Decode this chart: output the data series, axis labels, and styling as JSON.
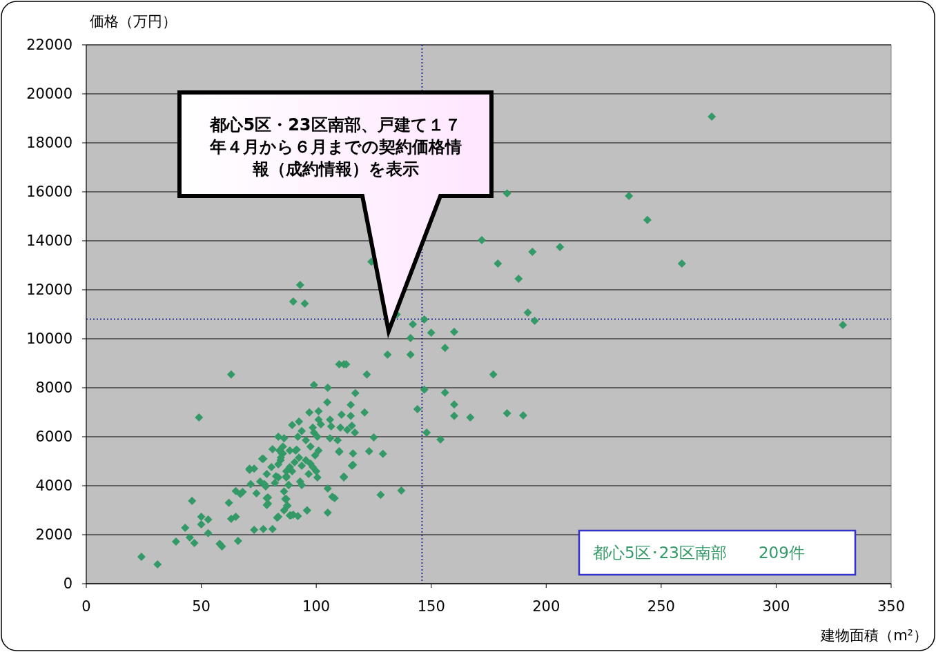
{
  "chart_data": {
    "type": "scatter",
    "xlabel": "建物面積（m²）",
    "ylabel": "価格（万円）",
    "annotations": [
      "都心5区・23区南部、戸建て１７年４月から６月までの契約価格情報（成約情報）を表示"
    ],
    "xlim": [
      0,
      350
    ],
    "xticks": [
      0,
      50,
      100,
      150,
      200,
      250,
      300,
      350
    ],
    "ylim": [
      0,
      22000
    ],
    "yticks": [
      0,
      2000,
      4000,
      6000,
      8000,
      10000,
      12000,
      14000,
      16000,
      18000,
      20000,
      22000
    ],
    "grid": "y",
    "marker": "diamond",
    "legend": "bottom right",
    "ref_lines": [
      {
        "axis": "x",
        "value": 146,
        "color": "#000080",
        "line_style": "dotted"
      },
      {
        "axis": "y",
        "value": 10800,
        "color": "#000080",
        "line_style": "dotted"
      }
    ],
    "series": [
      {
        "name": "都心5区･23区南部　　209件",
        "color": "#339966",
        "x": [
          24,
          31,
          39,
          43,
          46,
          45,
          47,
          50,
          50,
          53,
          53,
          58,
          59,
          49,
          63,
          62,
          63,
          65,
          66,
          65,
          67,
          68,
          71,
          73,
          73,
          77,
          81,
          79,
          79,
          78,
          83,
          82,
          77,
          85,
          86,
          87,
          90,
          92,
          96,
          99,
          93,
          90,
          95,
          105,
          105,
          105,
          107,
          108,
          112,
          110,
          116,
          116,
          110,
          112,
          113,
          117,
          121,
          122,
          125,
          123,
          129,
          128,
          137,
          124,
          131,
          135,
          141,
          141,
          142,
          147,
          150,
          156,
          160,
          144,
          147,
          148,
          154,
          156,
          160,
          160,
          167,
          177,
          183,
          190,
          172,
          179,
          183,
          188,
          194,
          206,
          192,
          195,
          236,
          244,
          259,
          272,
          329,
          89.5,
          83.5,
          86,
          81,
          76.5,
          71,
          85.5,
          85.5,
          84.5,
          80.5,
          78.5,
          82.5,
          71.5,
          74,
          87,
          88,
          86,
          86.5,
          87.5,
          88.5,
          78.5,
          78.5,
          75.6,
          77.5,
          90.6,
          91,
          104.8,
          115,
          97,
          101,
          111,
          115,
          92.5,
          101,
          106,
          102,
          98.5,
          106.5,
          110.5,
          113.5,
          115.5,
          116.8,
          93.7,
          99,
          106,
          109.3,
          92,
          95.5,
          100.5,
          97.5,
          101,
          110,
          88.5,
          91.5,
          84,
          84.6,
          92.5,
          95.5,
          99.5,
          97.5,
          88.5,
          93.7,
          98.5,
          115.5,
          83.5,
          87,
          89.5,
          96.7,
          100,
          100.5,
          112,
          83.5,
          87,
          93,
          93.7,
          88,
          87.3,
          96,
          89,
          83.5
        ],
        "values": [
          1100,
          790,
          1720,
          2280,
          3380,
          1890,
          1660,
          2730,
          2420,
          2620,
          2060,
          1630,
          1520,
          6790,
          8540,
          3300,
          2650,
          2730,
          1750,
          3780,
          3660,
          3750,
          4650,
          4700,
          2200,
          2230,
          2230,
          3270,
          3520,
          3970,
          2700,
          4110,
          5100,
          5320,
          2990,
          3460,
          2820,
          2760,
          2990,
          8110,
          12200,
          11520,
          11440,
          8000,
          3890,
          2900,
          3550,
          3490,
          4370,
          5380,
          4850,
          5320,
          8960,
          8960,
          8960,
          7780,
          6990,
          8540,
          5970,
          5410,
          5300,
          3630,
          3800,
          13150,
          9350,
          10990,
          10030,
          9350,
          10590,
          10790,
          10250,
          9630,
          10280,
          7130,
          7920,
          6170,
          5890,
          7800,
          7320,
          6850,
          6790,
          8540,
          6960,
          6870,
          14030,
          13070,
          15940,
          12450,
          13550,
          13750,
          11070,
          10730,
          15830,
          14850,
          13070,
          19070,
          10560,
          6480,
          6000,
          5940,
          5490,
          5100,
          4700,
          5600,
          5320,
          5040,
          4760,
          4480,
          4390,
          4060,
          3690,
          4390,
          4030,
          3770,
          3460,
          3180,
          2790,
          3490,
          3210,
          4170,
          4060,
          4960,
          5440,
          7410,
          7300,
          6990,
          7040,
          6900,
          6850,
          6620,
          6700,
          6700,
          6510,
          6370,
          6420,
          6370,
          6280,
          6450,
          6170,
          6230,
          6170,
          5940,
          5860,
          6000,
          5860,
          6000,
          5600,
          5440,
          5410,
          5440,
          5470,
          5440,
          5150,
          5150,
          5040,
          5240,
          4900,
          4760,
          4820,
          4760,
          4820,
          4870,
          4590,
          4590,
          4480,
          4590,
          4340,
          4340,
          4340,
          4340,
          4170,
          4030,
          4030,
          3180,
          2990,
          2790,
          2730
        ]
      }
    ]
  }
}
